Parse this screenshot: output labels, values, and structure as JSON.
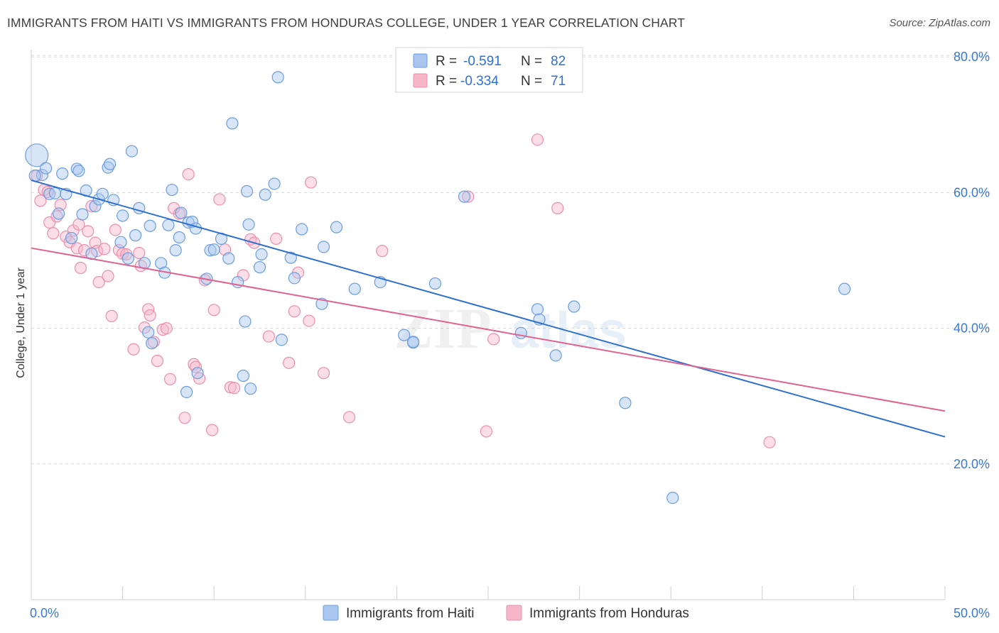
{
  "title": "IMMIGRANTS FROM HAITI VS IMMIGRANTS FROM HONDURAS COLLEGE, UNDER 1 YEAR CORRELATION CHART",
  "source": "Source: ZipAtlas.com",
  "watermark": {
    "zip": "ZIP",
    "atlas": "atlas"
  },
  "colors": {
    "haiti_fill": "#a9c6ee",
    "haiti_stroke": "#6a9de0",
    "haiti_line": "#2f6fd0",
    "honduras_fill": "#f6b6c9",
    "honduras_stroke": "#ec8fac",
    "honduras_line": "#e0628f",
    "grid": "#d9d9d9",
    "tick_label": "#3b78d0"
  },
  "legend": {
    "haiti": {
      "r_label": "R =",
      "r_value": "-0.591",
      "n_label": "N =",
      "n_value": "82"
    },
    "honduras": {
      "r_label": "R =",
      "r_value": "-0.334",
      "n_label": "N =",
      "n_value": "71"
    }
  },
  "chart_data": {
    "type": "scatter",
    "title": "IMMIGRANTS FROM HAITI VS IMMIGRANTS FROM HONDURAS COLLEGE, UNDER 1 YEAR CORRELATION CHART",
    "xlabel": "",
    "ylabel": "College, Under 1 year",
    "xlim": [
      0,
      50
    ],
    "ylim": [
      0,
      84
    ],
    "x_tick_labels": [
      "0.0%",
      "50.0%"
    ],
    "y_ticks": [
      20,
      40,
      60,
      80
    ],
    "y_tick_labels": [
      "20.0%",
      "40.0%",
      "60.0%",
      "80.0%"
    ],
    "series": [
      {
        "name": "Immigrants from Haiti",
        "r": -0.591,
        "n": 82,
        "trend": {
          "x": [
            0,
            50
          ],
          "y": [
            59.2,
            24.0
          ]
        },
        "points": [
          [
            0.3,
            65.5
          ],
          [
            0.6,
            62.6
          ],
          [
            0.8,
            63.6
          ],
          [
            1.0,
            59.8
          ],
          [
            1.3,
            59.9
          ],
          [
            1.5,
            56.9
          ],
          [
            1.7,
            62.8
          ],
          [
            1.9,
            59.8
          ],
          [
            2.2,
            53.3
          ],
          [
            2.5,
            63.5
          ],
          [
            2.6,
            63.2
          ],
          [
            2.8,
            56.8
          ],
          [
            3.0,
            60.3
          ],
          [
            3.3,
            51.0
          ],
          [
            3.5,
            58.0
          ],
          [
            3.7,
            59.0
          ],
          [
            3.9,
            59.8
          ],
          [
            4.2,
            63.7
          ],
          [
            4.3,
            64.2
          ],
          [
            4.5,
            58.9
          ],
          [
            4.9,
            52.7
          ],
          [
            5.0,
            56.6
          ],
          [
            5.3,
            50.3
          ],
          [
            5.5,
            66.1
          ],
          [
            5.7,
            53.7
          ],
          [
            5.9,
            57.7
          ],
          [
            6.2,
            49.6
          ],
          [
            6.4,
            39.4
          ],
          [
            6.5,
            55.1
          ],
          [
            6.6,
            37.8
          ],
          [
            7.1,
            49.6
          ],
          [
            7.3,
            48.2
          ],
          [
            7.5,
            55.2
          ],
          [
            7.7,
            60.4
          ],
          [
            7.9,
            51.5
          ],
          [
            8.1,
            53.4
          ],
          [
            8.2,
            57.0
          ],
          [
            8.5,
            30.6
          ],
          [
            8.6,
            55.6
          ],
          [
            8.8,
            55.7
          ],
          [
            9.0,
            54.7
          ],
          [
            9.1,
            33.4
          ],
          [
            9.6,
            47.3
          ],
          [
            9.8,
            51.5
          ],
          [
            10.0,
            51.6
          ],
          [
            10.4,
            53.2
          ],
          [
            10.8,
            50.3
          ],
          [
            11.0,
            70.2
          ],
          [
            11.3,
            46.8
          ],
          [
            11.6,
            33.0
          ],
          [
            11.7,
            41.0
          ],
          [
            11.8,
            60.2
          ],
          [
            11.9,
            55.3
          ],
          [
            12.0,
            31.1
          ],
          [
            12.5,
            49.0
          ],
          [
            12.6,
            50.9
          ],
          [
            12.8,
            59.7
          ],
          [
            13.3,
            61.3
          ],
          [
            13.5,
            77.0
          ],
          [
            13.7,
            38.3
          ],
          [
            14.2,
            50.4
          ],
          [
            14.4,
            47.4
          ],
          [
            14.8,
            54.6
          ],
          [
            15.9,
            43.6
          ],
          [
            16.0,
            52.0
          ],
          [
            16.7,
            54.9
          ],
          [
            17.7,
            45.8
          ],
          [
            19.1,
            46.8
          ],
          [
            20.4,
            39.0
          ],
          [
            20.9,
            37.9
          ],
          [
            20.9,
            38.0
          ],
          [
            22.1,
            46.6
          ],
          [
            23.7,
            59.4
          ],
          [
            26.8,
            39.3
          ],
          [
            27.7,
            42.8
          ],
          [
            27.8,
            41.3
          ],
          [
            28.7,
            36.0
          ],
          [
            29.7,
            43.2
          ],
          [
            32.5,
            29.0
          ],
          [
            35.1,
            15.0
          ],
          [
            44.5,
            45.8
          ],
          [
            0.2,
            62.5
          ]
        ]
      },
      {
        "name": "Immigrants from Honduras",
        "r": -0.334,
        "n": 71,
        "trend": {
          "x": [
            0,
            50
          ],
          "y": [
            51.3,
            27.8
          ]
        },
        "points": [
          [
            0.3,
            62.5
          ],
          [
            0.5,
            58.8
          ],
          [
            0.7,
            60.4
          ],
          [
            0.9,
            60.1
          ],
          [
            1.0,
            55.6
          ],
          [
            1.2,
            54.0
          ],
          [
            1.4,
            56.5
          ],
          [
            1.6,
            58.2
          ],
          [
            1.9,
            53.5
          ],
          [
            2.1,
            52.7
          ],
          [
            2.3,
            54.4
          ],
          [
            2.5,
            51.8
          ],
          [
            2.6,
            55.3
          ],
          [
            2.7,
            48.9
          ],
          [
            2.9,
            51.5
          ],
          [
            3.1,
            54.3
          ],
          [
            3.3,
            58.0
          ],
          [
            3.5,
            52.6
          ],
          [
            3.6,
            51.4
          ],
          [
            3.7,
            46.8
          ],
          [
            4.0,
            51.7
          ],
          [
            4.2,
            47.7
          ],
          [
            4.4,
            41.8
          ],
          [
            4.6,
            54.5
          ],
          [
            4.8,
            51.5
          ],
          [
            5.0,
            51.0
          ],
          [
            5.2,
            50.9
          ],
          [
            5.6,
            36.9
          ],
          [
            5.9,
            51.1
          ],
          [
            6.0,
            49.2
          ],
          [
            6.2,
            40.1
          ],
          [
            6.4,
            42.8
          ],
          [
            6.5,
            41.9
          ],
          [
            6.7,
            38.0
          ],
          [
            6.9,
            35.2
          ],
          [
            7.2,
            39.8
          ],
          [
            7.4,
            40.0
          ],
          [
            7.6,
            32.5
          ],
          [
            7.8,
            57.7
          ],
          [
            8.1,
            56.9
          ],
          [
            8.4,
            26.8
          ],
          [
            8.6,
            62.7
          ],
          [
            8.9,
            34.7
          ],
          [
            9.0,
            34.3
          ],
          [
            9.2,
            32.6
          ],
          [
            9.5,
            47.1
          ],
          [
            9.9,
            25.0
          ],
          [
            10.0,
            42.7
          ],
          [
            10.3,
            59.0
          ],
          [
            10.6,
            51.6
          ],
          [
            10.9,
            31.3
          ],
          [
            11.1,
            31.2
          ],
          [
            11.6,
            47.8
          ],
          [
            12.0,
            53.1
          ],
          [
            12.2,
            52.6
          ],
          [
            13.0,
            38.8
          ],
          [
            13.4,
            53.2
          ],
          [
            14.1,
            34.9
          ],
          [
            14.4,
            42.5
          ],
          [
            14.6,
            48.2
          ],
          [
            15.2,
            41.1
          ],
          [
            15.3,
            61.5
          ],
          [
            16.0,
            33.4
          ],
          [
            17.4,
            26.9
          ],
          [
            19.2,
            51.4
          ],
          [
            23.9,
            59.4
          ],
          [
            24.9,
            24.8
          ],
          [
            27.7,
            67.8
          ],
          [
            28.8,
            57.7
          ],
          [
            40.4,
            23.2
          ],
          [
            25.3,
            38.4
          ]
        ]
      }
    ]
  }
}
